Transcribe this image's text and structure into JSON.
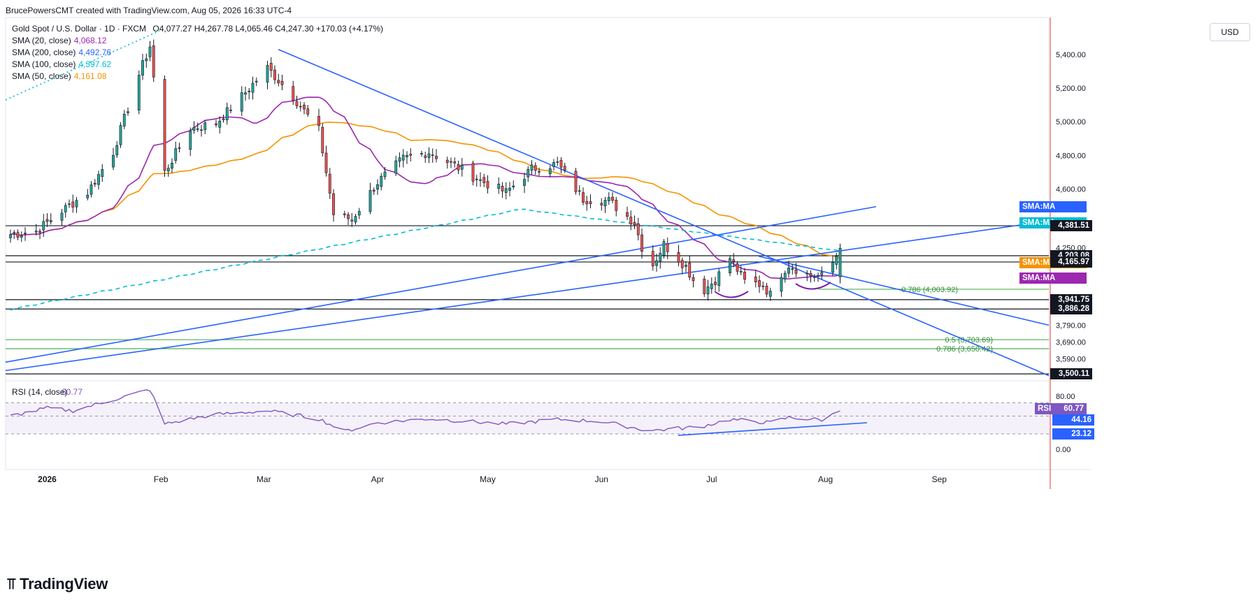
{
  "header": {
    "attribution": "BrucePowersCMT created with TradingView.com, Aug 05, 2026 16:33 UTC-4",
    "symbol": "Gold Spot / U.S. Dollar · 1D · FXCM",
    "ohlc": "O4,077.27  H4,267.78  L4,065.46  C4,247.30  +170.03 (+4.17%)"
  },
  "legend": [
    {
      "label": "SMA (20, close)",
      "value": "4,068.12",
      "color": "#9c27b0"
    },
    {
      "label": "SMA (200, close)",
      "value": "4,492.76",
      "color": "#2962ff"
    },
    {
      "label": "SMA (100, close)",
      "value": "4,397.62",
      "color": "#00bcd4"
    },
    {
      "label": "SMA (50, close)",
      "value": "4,161.08",
      "color": "#f59300"
    }
  ],
  "currency_button": "USD",
  "brand": "TradingView",
  "chart_data": [
    {
      "type": "candlestick",
      "title": "Gold Spot / U.S. Dollar · 1D · FXCM",
      "ylim": [
        3480,
        5620
      ],
      "y_ticks": [
        "5,400.00",
        "5,200.00",
        "5,000.00",
        "4,800.00",
        "4,600.00",
        "4,250.00",
        "3,790.00",
        "3,690.00",
        "3,590.00"
      ],
      "y_tick_values": [
        5400,
        5200,
        5000,
        4800,
        4600,
        4250,
        3790,
        3690,
        3590
      ],
      "x_labels": [
        {
          "label": "2026",
          "date": "2026-01-01"
        },
        {
          "label": "Feb",
          "date": "2026-02-01"
        },
        {
          "label": "Mar",
          "date": "2026-03-01"
        },
        {
          "label": "Apr",
          "date": "2026-04-01"
        },
        {
          "label": "May",
          "date": "2026-05-01"
        },
        {
          "label": "Jun",
          "date": "2026-06-01"
        },
        {
          "label": "Jul",
          "date": "2026-07-01"
        },
        {
          "label": "Aug",
          "date": "2026-08-01"
        },
        {
          "label": "Sep",
          "date": "2026-09-01"
        }
      ],
      "ohlc_anchor_closes": [
        [
          "2025-12-22",
          4330
        ],
        [
          "2025-12-29",
          4350
        ],
        [
          "2026-01-05",
          4470
        ],
        [
          "2026-01-12",
          4580
        ],
        [
          "2026-01-19",
          4820
        ],
        [
          "2026-01-26",
          5280
        ],
        [
          "2026-01-29",
          5450
        ],
        [
          "2026-02-02",
          4700
        ],
        [
          "2026-02-09",
          4960
        ],
        [
          "2026-02-16",
          4990
        ],
        [
          "2026-02-23",
          5150
        ],
        [
          "2026-03-02",
          5320
        ],
        [
          "2026-03-09",
          5150
        ],
        [
          "2026-03-16",
          4950
        ],
        [
          "2026-03-20",
          4450
        ],
        [
          "2026-03-25",
          4420
        ],
        [
          "2026-04-01",
          4640
        ],
        [
          "2026-04-08",
          4780
        ],
        [
          "2026-04-15",
          4820
        ],
        [
          "2026-04-22",
          4740
        ],
        [
          "2026-04-29",
          4650
        ],
        [
          "2026-05-06",
          4580
        ],
        [
          "2026-05-13",
          4720
        ],
        [
          "2026-05-20",
          4750
        ],
        [
          "2026-05-27",
          4540
        ],
        [
          "2026-06-03",
          4530
        ],
        [
          "2026-06-10",
          4400
        ],
        [
          "2026-06-14",
          4110
        ],
        [
          "2026-06-18",
          4270
        ],
        [
          "2026-06-24",
          4140
        ],
        [
          "2026-06-28",
          3980
        ],
        [
          "2026-07-02",
          4060
        ],
        [
          "2026-07-06",
          4190
        ],
        [
          "2026-07-10",
          4050
        ],
        [
          "2026-07-15",
          4030
        ],
        [
          "2026-07-17",
          3970
        ],
        [
          "2026-07-20",
          4100
        ],
        [
          "2026-07-22",
          4150
        ],
        [
          "2026-07-27",
          4090
        ],
        [
          "2026-08-01",
          4077
        ],
        [
          "2026-08-05",
          4247
        ]
      ],
      "moving_averages": [
        {
          "name": "SMA (20, close)",
          "value": 4068.12,
          "color": "#9c27b0"
        },
        {
          "name": "SMA (200, close)",
          "value": 4492.76,
          "color": "#2962ff"
        },
        {
          "name": "SMA (100, close)",
          "value": 4397.62,
          "color": "#00bcd4"
        },
        {
          "name": "SMA (50, close)",
          "value": 4161.08,
          "color": "#f59300"
        }
      ],
      "horizontal_levels": [
        {
          "value": 4381.51,
          "label": "4,381.51",
          "color": "#131722"
        },
        {
          "value": 4203.08,
          "label": "4,203.08",
          "color": "#131722"
        },
        {
          "value": 4165.97,
          "label": "4,165.97",
          "color": "#131722"
        },
        {
          "value": 3941.75,
          "label": "3,941.75",
          "color": "#131722"
        },
        {
          "value": 3886.28,
          "label": "3,886.28",
          "color": "#131722"
        },
        {
          "value": 3500.11,
          "label": "3,500.11",
          "color": "#131722"
        }
      ],
      "fib_levels": [
        {
          "value": 4003.92,
          "label": "0.786 (4,003.92)",
          "color": "#4caf50"
        },
        {
          "value": 3703.69,
          "label": "0.5 (3,703.69)",
          "color": "#4caf50"
        },
        {
          "value": 3650.42,
          "label": "0.786 (3,650.42)",
          "color": "#4caf50"
        }
      ],
      "axis_tags": [
        {
          "text": "SMA:MA",
          "value": "4,492.76",
          "color": "#2962ff"
        },
        {
          "text": "SMA:MA",
          "value": "4,397.62",
          "color": "#00bcd4"
        },
        {
          "text": "SMA:MA",
          "value": "4,161.08",
          "color": "#f59300"
        },
        {
          "text": "SMA:MA",
          "value": "4,068.12",
          "color": "#9c27b0"
        }
      ],
      "last_price": 4247.3,
      "bull_color": "#26a69a",
      "bear_color": "#ef5350"
    },
    {
      "type": "line",
      "title": "RSI (14, close)",
      "value_label": "60.77",
      "ylim": [
        0,
        100
      ],
      "y_ticks": [
        "80.00",
        "0.00"
      ],
      "y_tick_values": [
        80,
        0
      ],
      "band": [
        23.12,
        70
      ],
      "axis_tags": [
        {
          "text": "RSI",
          "value": "60.77",
          "color": "#7e57c2"
        },
        {
          "text": "",
          "value": "44.16",
          "color": "#2962ff"
        },
        {
          "text": "",
          "value": "23.12",
          "color": "#2962ff"
        }
      ],
      "anchors": [
        [
          "2025-12-22",
          50
        ],
        [
          "2026-01-01",
          62
        ],
        [
          "2026-01-08",
          58
        ],
        [
          "2026-01-29",
          90
        ],
        [
          "2026-02-02",
          38
        ],
        [
          "2026-02-15",
          52
        ],
        [
          "2026-03-02",
          58
        ],
        [
          "2026-03-16",
          46
        ],
        [
          "2026-03-23",
          27
        ],
        [
          "2026-04-01",
          40
        ],
        [
          "2026-04-15",
          46
        ],
        [
          "2026-05-06",
          38
        ],
        [
          "2026-05-20",
          45
        ],
        [
          "2026-06-01",
          42
        ],
        [
          "2026-06-14",
          28
        ],
        [
          "2026-06-28",
          34
        ],
        [
          "2026-07-06",
          45
        ],
        [
          "2026-07-17",
          40
        ],
        [
          "2026-07-22",
          48
        ],
        [
          "2026-08-01",
          44
        ],
        [
          "2026-08-05",
          60.77
        ]
      ],
      "color": "#7e57c2"
    }
  ]
}
